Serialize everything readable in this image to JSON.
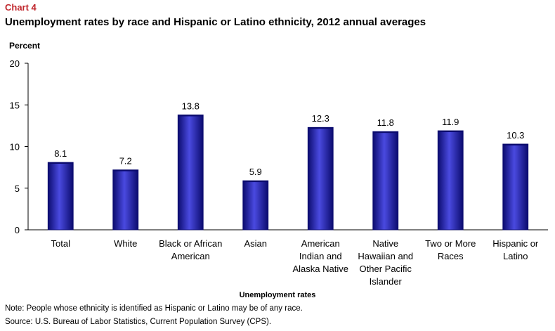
{
  "chart_label": "Chart 4",
  "note": "Note: People whose ethnicity is identified as Hispanic or Latino may be of any race.",
  "source": "Source: U.S. Bureau of Labor Statistics, Current Population Survey (CPS).",
  "colors": {
    "bar": "#1a1ab8",
    "bar_dark": "#0b0b6e",
    "bar_light": "#4a4ae0",
    "chart_label": "#c0272d"
  },
  "chart_data": {
    "type": "bar",
    "title": "Unemployment rates by race and Hispanic or Latino ethnicity, 2012 annual averages",
    "ylabel": "Percent",
    "xlabel": "Unemployment rates",
    "ylim": [
      0,
      20
    ],
    "yticks": [
      0,
      5,
      10,
      15,
      20
    ],
    "grid": false,
    "categories": [
      [
        "Total"
      ],
      [
        "White"
      ],
      [
        "Black or African",
        "American"
      ],
      [
        "Asian"
      ],
      [
        "American",
        "Indian and",
        "Alaska Native"
      ],
      [
        "Native",
        "Hawaiian and",
        "Other Pacific",
        "Islander"
      ],
      [
        "Two or More",
        "Races"
      ],
      [
        "Hispanic or",
        "Latino"
      ]
    ],
    "values": [
      8.1,
      7.2,
      13.8,
      5.9,
      12.3,
      11.8,
      11.9,
      10.3
    ],
    "value_labels": [
      "8.1",
      "7.2",
      "13.8",
      "5.9",
      "12.3",
      "11.8",
      "11.9",
      "10.3"
    ]
  }
}
